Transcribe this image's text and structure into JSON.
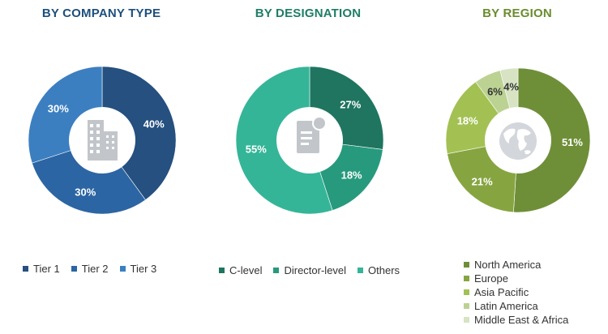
{
  "chart_data": [
    {
      "type": "pie",
      "title": "BY COMPANY TYPE",
      "categories": [
        "Tier 1",
        "Tier 2",
        "Tier 3"
      ],
      "values": [
        40,
        30,
        30
      ],
      "labels": [
        "40%",
        "30%",
        "30%"
      ],
      "colors": [
        "#25507f",
        "#2c65a3",
        "#3c7fc0"
      ],
      "center_icon": "building-icon",
      "legend_position": "bottom"
    },
    {
      "type": "pie",
      "title": "BY DESIGNATION",
      "categories": [
        "C-level",
        "Director-level",
        "Others"
      ],
      "values": [
        27,
        18,
        55
      ],
      "labels": [
        "27%",
        "18%",
        "55%"
      ],
      "colors": [
        "#1f7560",
        "#279a7d",
        "#35b597"
      ],
      "center_icon": "document-icon",
      "legend_position": "bottom"
    },
    {
      "type": "pie",
      "title": "BY REGION",
      "categories": [
        "North America",
        "Europe",
        "Asia Pacific",
        "Latin America",
        "Middle East & Africa"
      ],
      "values": [
        51,
        21,
        18,
        6,
        4
      ],
      "labels": [
        "51%",
        "21%",
        "18%",
        "6%",
        "4%"
      ],
      "colors": [
        "#6e8f38",
        "#86a541",
        "#a3c153",
        "#bcd293",
        "#d7e3c2"
      ],
      "center_icon": "globe-icon",
      "legend_position": "bottom"
    }
  ],
  "theme": {
    "title_colors": [
      "#1d4f7c",
      "#1f7d66",
      "#6a8c2e"
    ]
  }
}
